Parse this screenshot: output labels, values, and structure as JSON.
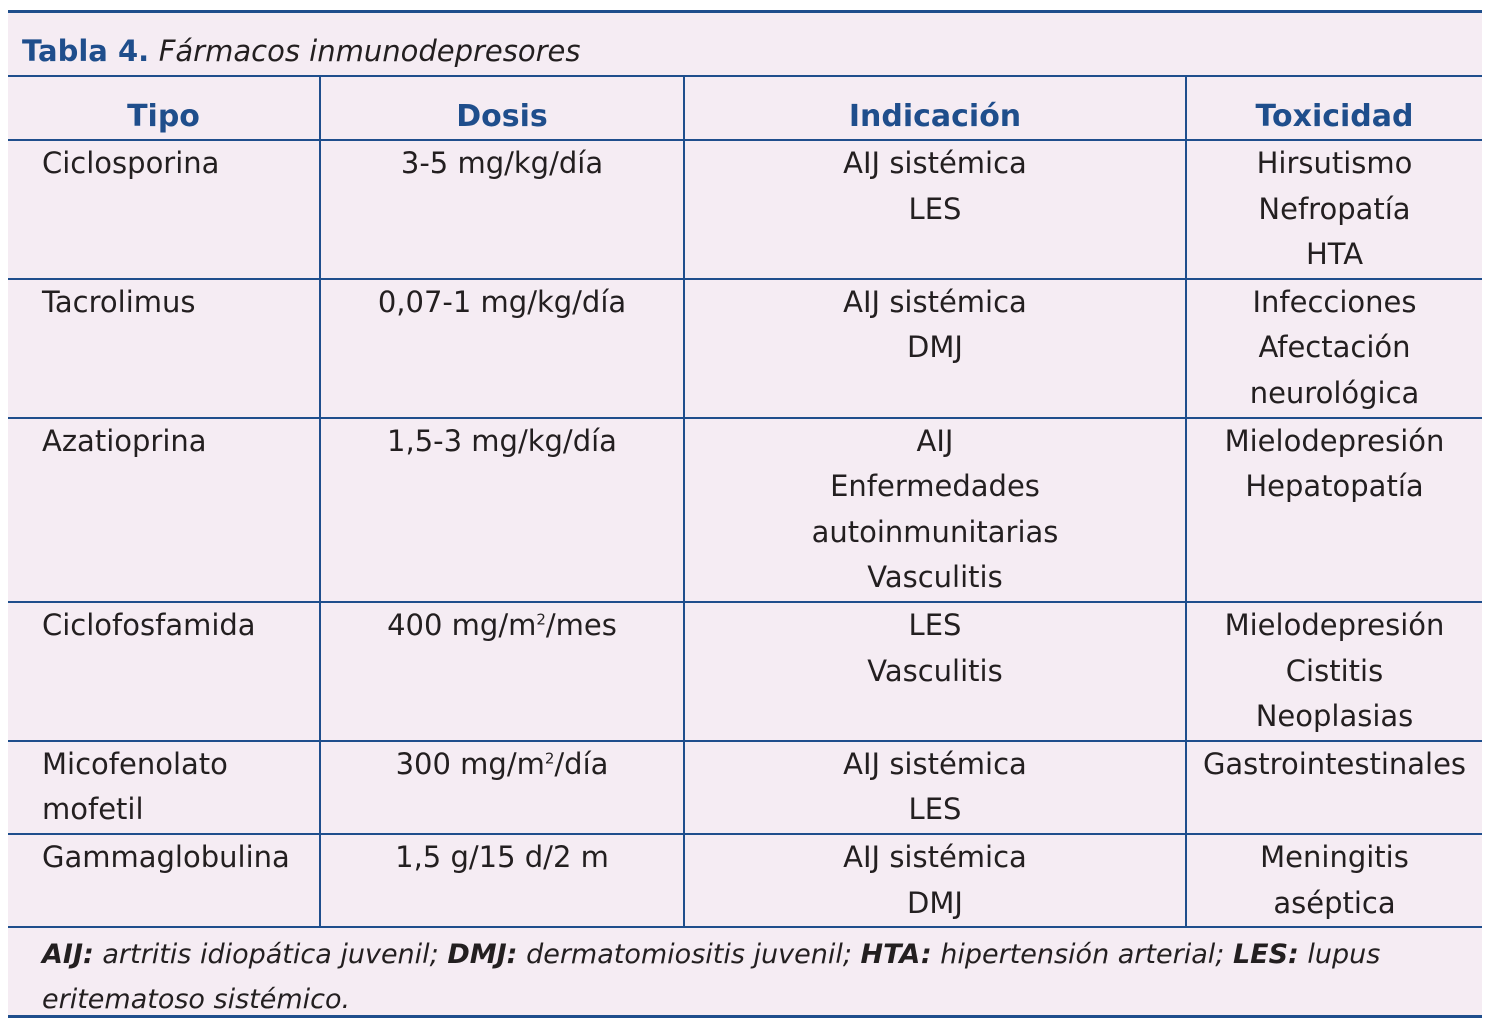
{
  "caption": {
    "label": "Tabla 4.",
    "text": "Fármacos inmunodepresores"
  },
  "table": {
    "headers": [
      "Tipo",
      "Dosis",
      "Indicación",
      "Toxicidad"
    ],
    "rows": [
      {
        "tipo": [
          "Ciclosporina"
        ],
        "dosis": "3-5 mg/kg/día",
        "indicacion": [
          "AIJ sistémica",
          "LES"
        ],
        "toxicidad": [
          "Hirsutismo",
          "Nefropatía",
          "HTA"
        ]
      },
      {
        "tipo": [
          "Tacrolimus"
        ],
        "dosis": "0,07-1 mg/kg/día",
        "indicacion": [
          "AIJ sistémica",
          "DMJ"
        ],
        "toxicidad": [
          "Infecciones",
          "Afectación",
          "neurológica"
        ]
      },
      {
        "tipo": [
          "Azatioprina"
        ],
        "dosis": "1,5-3 mg/kg/día",
        "indicacion": [
          "AIJ",
          "Enfermedades",
          "autoinmunitarias",
          "Vasculitis"
        ],
        "toxicidad": [
          "Mielodepresión",
          "Hepatopatía"
        ]
      },
      {
        "tipo": [
          "Ciclofosfamida"
        ],
        "dosis_pre": "400 mg/m",
        "dosis_sup": "2",
        "dosis_post": "/mes",
        "indicacion": [
          "LES",
          "Vasculitis"
        ],
        "toxicidad": [
          "Mielodepresión",
          "Cistitis",
          "Neoplasias"
        ]
      },
      {
        "tipo": [
          "Micofenolato",
          "mofetil"
        ],
        "dosis_pre": "300 mg/m",
        "dosis_sup": "2",
        "dosis_post": "/día",
        "indicacion": [
          "AIJ sistémica",
          "LES"
        ],
        "toxicidad": [
          "Gastrointestinales"
        ]
      },
      {
        "tipo": [
          "Gammaglobulina"
        ],
        "dosis": "1,5 g/15 d/2 m",
        "indicacion": [
          "AIJ sistémica",
          "DMJ"
        ],
        "toxicidad": [
          "Meningitis",
          "aséptica"
        ]
      }
    ]
  },
  "footnote": {
    "items": [
      {
        "abbr": "AIJ:",
        "def": " artritis idiopática juvenil; "
      },
      {
        "abbr": "DMJ:",
        "def": " dermatomiositis juvenil; "
      },
      {
        "abbr": "HTA:",
        "def": " hipertensión arterial; "
      },
      {
        "abbr": "LES:",
        "def": " lupus eritematoso sistémico."
      }
    ]
  },
  "colors": {
    "accent": "#1f4e8c",
    "background": "#f5ecf3",
    "text": "#231f20"
  }
}
